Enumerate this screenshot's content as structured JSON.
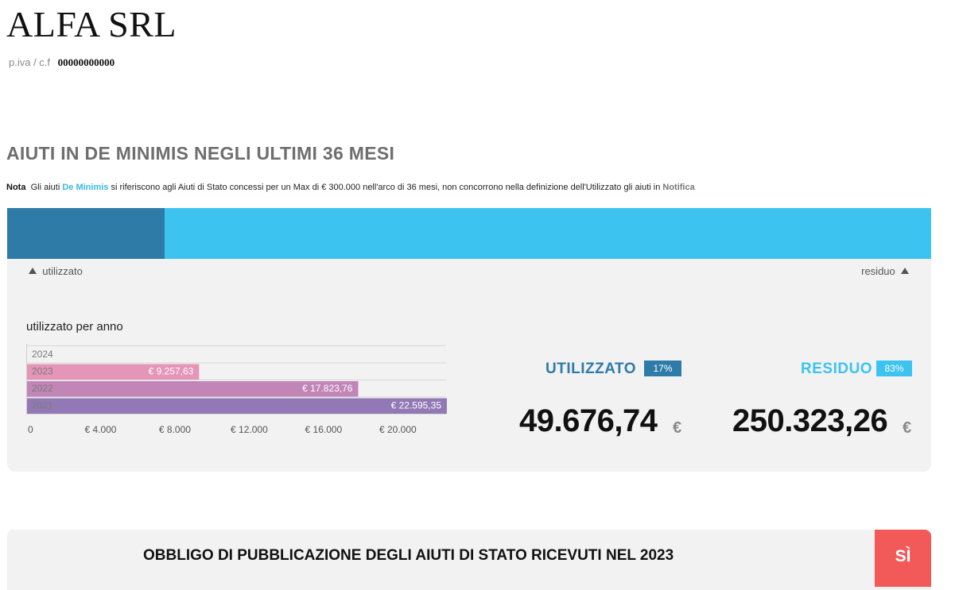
{
  "company": {
    "name": "ALFA SRL",
    "piva_label": "p.iva / c.f",
    "piva_value": "00000000000"
  },
  "section": {
    "title": "AIUTI IN DE MINIMIS NEGLI ULTIMI 36 MESI",
    "note_label": "Nota",
    "note_part1": "Gli aiuti",
    "note_deminimis": "De Minimis",
    "note_part2": "si riferiscono agli Aiuti di Stato concessi per un Max di € 300.000 nell'arco di 36 mesi, non concorrono nella definizione dell'Utilizzato gli aiuti in",
    "note_notifica": "Notifica"
  },
  "progress": {
    "used_fraction": 0.17,
    "used_color": "#2e7ba8",
    "residual_color": "#3cc3f0",
    "label_used": "utilizzato",
    "label_residual": "residuo"
  },
  "chart_data": {
    "type": "bar",
    "orientation": "horizontal",
    "title": "utilizzato per anno",
    "categories": [
      "2024",
      "2023",
      "2022",
      "2021"
    ],
    "values": [
      0,
      9257.63,
      17823.76,
      22595.35
    ],
    "value_labels": [
      "",
      "€ 9.257,63",
      "€ 17.823,76",
      "€ 22.595,35"
    ],
    "colors": [
      "#e8e8e8",
      "#e495b8",
      "#c185b8",
      "#9279b5"
    ],
    "xlim": [
      0,
      22595.35
    ],
    "xticks": [
      0,
      4000,
      8000,
      12000,
      16000,
      20000
    ],
    "xtick_labels": [
      "0",
      "€ 4.000",
      "€ 8.000",
      "€ 12.000",
      "€ 16.000",
      "€ 20.000"
    ],
    "grid": false
  },
  "summary": {
    "used_label": "UTILIZZATO",
    "used_pct": "17%",
    "used_value": "49.676,74",
    "used_currency": "€",
    "residual_label": "RESIDUO",
    "residual_pct": "83%",
    "residual_value": "250.323,26",
    "residual_currency": "€",
    "used_color": "#2e7ba8",
    "residual_color": "#3cc3f0"
  },
  "obligation": {
    "text": "OBBLIGO DI PUBBLICAZIONE DEGLI AIUTI DI STATO RICEVUTI NEL 2023",
    "answer": "SÌ",
    "answer_color": "#f25a5a"
  }
}
